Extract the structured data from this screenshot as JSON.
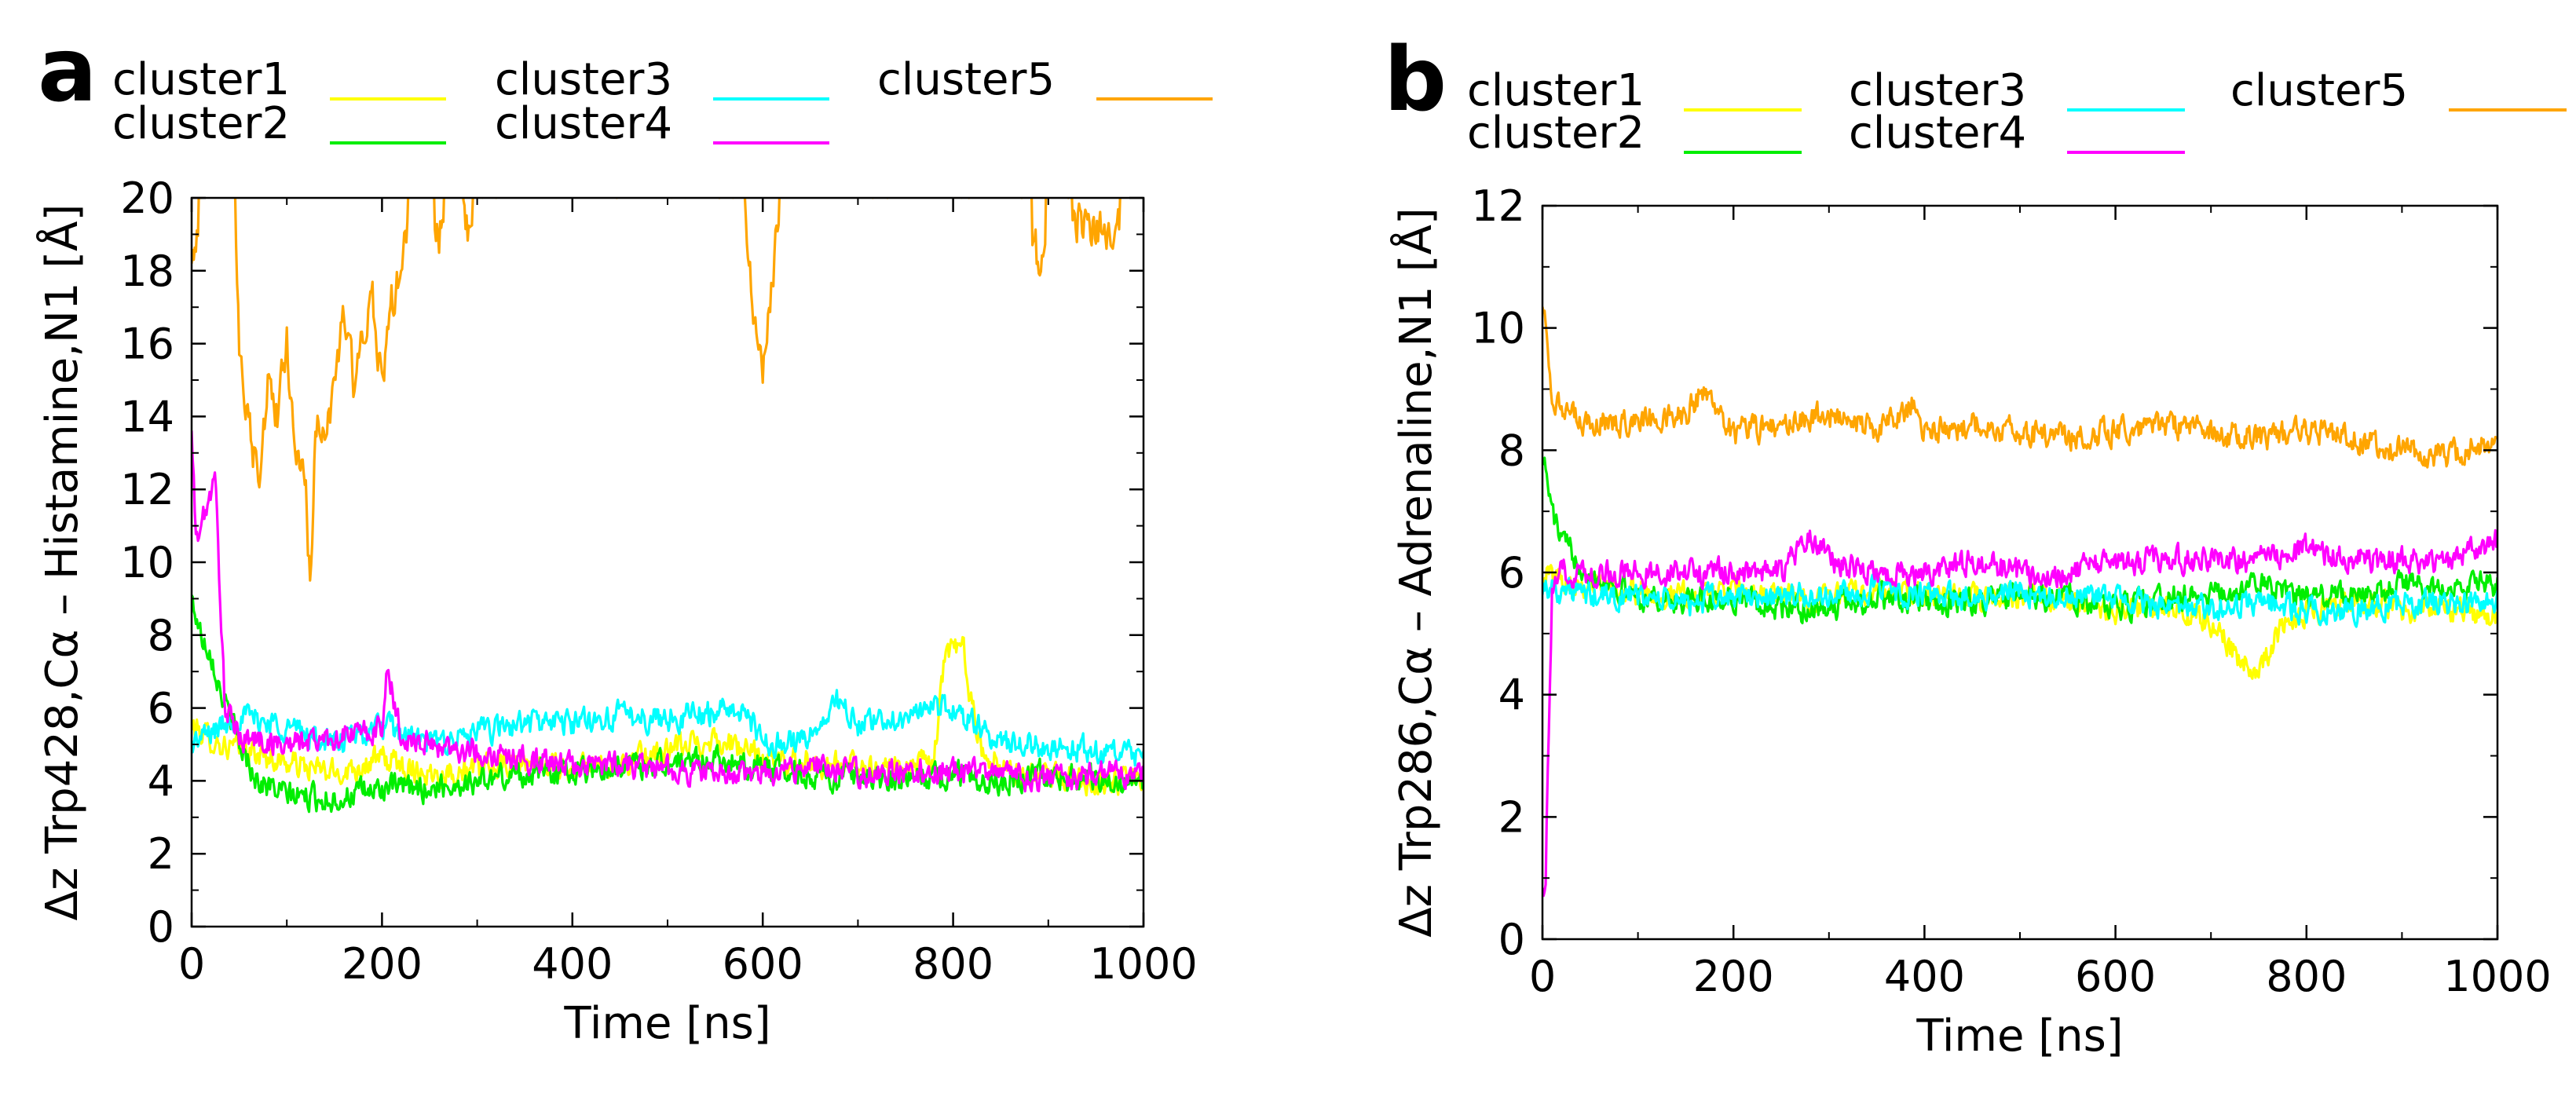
{
  "chart_data": [
    {
      "type": "line",
      "panel": "a",
      "xlabel": "Time [ns]",
      "ylabel": "Δz Trp428,Cα – Histamine,N1 [Å]",
      "xlim": [
        0,
        1000
      ],
      "ylim": [
        0,
        20
      ],
      "xticks": [
        0,
        200,
        400,
        600,
        800,
        1000
      ],
      "yticks": [
        0,
        2,
        4,
        6,
        8,
        10,
        12,
        14,
        16,
        18,
        20
      ],
      "legend_position": "top",
      "series": [
        {
          "name": "cluster1",
          "color": "#ffff00",
          "points": [
            [
              0,
              5.5
            ],
            [
              30,
              5
            ],
            [
              60,
              4.8
            ],
            [
              100,
              4.5
            ],
            [
              150,
              4.2
            ],
            [
              200,
              4.6
            ],
            [
              250,
              4.2
            ],
            [
              300,
              4.3
            ],
            [
              350,
              4.5
            ],
            [
              400,
              4.3
            ],
            [
              450,
              4.5
            ],
            [
              500,
              4.8
            ],
            [
              550,
              5.2
            ],
            [
              600,
              4.6
            ],
            [
              650,
              4.5
            ],
            [
              700,
              4.4
            ],
            [
              750,
              4.4
            ],
            [
              780,
              4.5
            ],
            [
              790,
              7.2
            ],
            [
              800,
              7.6
            ],
            [
              810,
              7.8
            ],
            [
              820,
              6.0
            ],
            [
              830,
              4.8
            ],
            [
              870,
              4.2
            ],
            [
              900,
              4.1
            ],
            [
              950,
              4.0
            ],
            [
              1000,
              4.0
            ]
          ]
        },
        {
          "name": "cluster2",
          "color": "#00ee00",
          "points": [
            [
              0,
              9.0
            ],
            [
              10,
              8.0
            ],
            [
              20,
              7.6
            ],
            [
              30,
              6.5
            ],
            [
              50,
              5.0
            ],
            [
              70,
              4.0
            ],
            [
              100,
              3.6
            ],
            [
              150,
              3.5
            ],
            [
              200,
              3.8
            ],
            [
              250,
              3.8
            ],
            [
              300,
              4.0
            ],
            [
              350,
              4.2
            ],
            [
              400,
              4.3
            ],
            [
              450,
              4.4
            ],
            [
              500,
              4.5
            ],
            [
              550,
              4.6
            ],
            [
              600,
              4.4
            ],
            [
              650,
              4.2
            ],
            [
              700,
              4.0
            ],
            [
              750,
              4.0
            ],
            [
              800,
              4.2
            ],
            [
              850,
              4.0
            ],
            [
              900,
              4.2
            ],
            [
              950,
              4.0
            ],
            [
              1000,
              3.9
            ]
          ]
        },
        {
          "name": "cluster3",
          "color": "#00ffff",
          "points": [
            [
              0,
              5.0
            ],
            [
              50,
              5.8
            ],
            [
              100,
              5.5
            ],
            [
              150,
              5.0
            ],
            [
              200,
              5.5
            ],
            [
              250,
              5.0
            ],
            [
              300,
              5.3
            ],
            [
              350,
              5.6
            ],
            [
              400,
              5.6
            ],
            [
              450,
              5.8
            ],
            [
              500,
              5.7
            ],
            [
              550,
              5.9
            ],
            [
              580,
              6.0
            ],
            [
              600,
              5.0
            ],
            [
              650,
              5.2
            ],
            [
              680,
              6.2
            ],
            [
              700,
              5.5
            ],
            [
              750,
              5.8
            ],
            [
              800,
              6.0
            ],
            [
              850,
              5.0
            ],
            [
              900,
              5.0
            ],
            [
              950,
              4.8
            ],
            [
              1000,
              4.6
            ]
          ]
        },
        {
          "name": "cluster4",
          "color": "#ff00ff",
          "points": [
            [
              0,
              13.5
            ],
            [
              5,
              10.5
            ],
            [
              15,
              11.5
            ],
            [
              25,
              12.2
            ],
            [
              35,
              6.0
            ],
            [
              50,
              5.2
            ],
            [
              100,
              5.0
            ],
            [
              150,
              5.2
            ],
            [
              200,
              5.4
            ],
            [
              205,
              7.2
            ],
            [
              220,
              5.2
            ],
            [
              250,
              5.0
            ],
            [
              300,
              4.8
            ],
            [
              350,
              4.6
            ],
            [
              400,
              4.4
            ],
            [
              450,
              4.5
            ],
            [
              500,
              4.3
            ],
            [
              550,
              4.2
            ],
            [
              600,
              4.2
            ],
            [
              650,
              4.4
            ],
            [
              700,
              4.2
            ],
            [
              750,
              4.3
            ],
            [
              800,
              4.3
            ],
            [
              850,
              4.2
            ],
            [
              900,
              4.0
            ],
            [
              950,
              4.2
            ],
            [
              1000,
              4.2
            ]
          ]
        },
        {
          "name": "cluster5",
          "color": "#ffa500",
          "points": [
            [
              0,
              18
            ],
            [
              10,
              20
            ],
            [
              20,
              20
            ],
            [
              30,
              20
            ],
            [
              45,
              20
            ],
            [
              50,
              16
            ],
            [
              60,
              14
            ],
            [
              70,
              12
            ],
            [
              80,
              15
            ],
            [
              90,
              14
            ],
            [
              100,
              16
            ],
            [
              110,
              13
            ],
            [
              120,
              12
            ],
            [
              125,
              9
            ],
            [
              130,
              14
            ],
            [
              140,
              13
            ],
            [
              150,
              15
            ],
            [
              160,
              17
            ],
            [
              170,
              15
            ],
            [
              180,
              16
            ],
            [
              190,
              17
            ],
            [
              200,
              15
            ],
            [
              210,
              17
            ],
            [
              220,
              18
            ],
            [
              230,
              20
            ],
            [
              250,
              20
            ],
            [
              260,
              19
            ],
            [
              270,
              20
            ],
            [
              280,
              20
            ],
            [
              290,
              19
            ],
            [
              300,
              20
            ],
            [
              350,
              20
            ],
            [
              400,
              20
            ],
            [
              450,
              20
            ],
            [
              500,
              20
            ],
            [
              550,
              20
            ],
            [
              580,
              20
            ],
            [
              590,
              17
            ],
            [
              600,
              15
            ],
            [
              610,
              18
            ],
            [
              620,
              20
            ],
            [
              650,
              20
            ],
            [
              700,
              20
            ],
            [
              750,
              20
            ],
            [
              800,
              20
            ],
            [
              850,
              20
            ],
            [
              880,
              20
            ],
            [
              890,
              18
            ],
            [
              900,
              20
            ],
            [
              950,
              19
            ],
            [
              1000,
              20
            ]
          ]
        }
      ]
    },
    {
      "type": "line",
      "panel": "b",
      "xlabel": "Time [ns]",
      "ylabel": "Δz Trp286,Cα – Adrenaline,N1 [Å]",
      "xlim": [
        0,
        1000
      ],
      "ylim": [
        0,
        12
      ],
      "xticks": [
        0,
        200,
        400,
        600,
        800,
        1000
      ],
      "yticks": [
        0,
        2,
        4,
        6,
        8,
        10,
        12
      ],
      "legend_position": "top",
      "series": [
        {
          "name": "cluster1",
          "color": "#ffff00",
          "points": [
            [
              0,
              6.0
            ],
            [
              50,
              5.8
            ],
            [
              100,
              5.7
            ],
            [
              150,
              5.6
            ],
            [
              200,
              5.7
            ],
            [
              250,
              5.6
            ],
            [
              300,
              5.6
            ],
            [
              350,
              5.7
            ],
            [
              400,
              5.6
            ],
            [
              450,
              5.6
            ],
            [
              500,
              5.6
            ],
            [
              550,
              5.5
            ],
            [
              600,
              5.4
            ],
            [
              650,
              5.4
            ],
            [
              700,
              5.2
            ],
            [
              730,
              4.6
            ],
            [
              750,
              4.4
            ],
            [
              770,
              5.0
            ],
            [
              800,
              5.4
            ],
            [
              850,
              5.5
            ],
            [
              900,
              5.4
            ],
            [
              950,
              5.4
            ],
            [
              1000,
              5.3
            ]
          ]
        },
        {
          "name": "cluster2",
          "color": "#00ee00",
          "points": [
            [
              0,
              8.0
            ],
            [
              10,
              7.0
            ],
            [
              20,
              6.5
            ],
            [
              50,
              6.0
            ],
            [
              100,
              5.6
            ],
            [
              150,
              5.5
            ],
            [
              200,
              5.6
            ],
            [
              250,
              5.4
            ],
            [
              300,
              5.4
            ],
            [
              350,
              5.6
            ],
            [
              400,
              5.5
            ],
            [
              450,
              5.5
            ],
            [
              500,
              5.6
            ],
            [
              550,
              5.6
            ],
            [
              600,
              5.4
            ],
            [
              650,
              5.6
            ],
            [
              700,
              5.6
            ],
            [
              750,
              5.8
            ],
            [
              800,
              5.6
            ],
            [
              850,
              5.6
            ],
            [
              900,
              5.8
            ],
            [
              950,
              5.8
            ],
            [
              1000,
              5.8
            ]
          ]
        },
        {
          "name": "cluster3",
          "color": "#00ffff",
          "points": [
            [
              0,
              5.8
            ],
            [
              50,
              5.6
            ],
            [
              100,
              5.6
            ],
            [
              150,
              5.5
            ],
            [
              200,
              5.6
            ],
            [
              250,
              5.6
            ],
            [
              300,
              5.6
            ],
            [
              350,
              5.7
            ],
            [
              400,
              5.6
            ],
            [
              450,
              5.6
            ],
            [
              500,
              5.7
            ],
            [
              550,
              5.6
            ],
            [
              600,
              5.6
            ],
            [
              650,
              5.4
            ],
            [
              700,
              5.4
            ],
            [
              750,
              5.5
            ],
            [
              800,
              5.4
            ],
            [
              850,
              5.4
            ],
            [
              900,
              5.5
            ],
            [
              950,
              5.5
            ],
            [
              1000,
              5.6
            ]
          ]
        },
        {
          "name": "cluster4",
          "color": "#ff00ff",
          "points": [
            [
              0,
              1.0
            ],
            [
              3,
              0.8
            ],
            [
              6,
              3.0
            ],
            [
              10,
              5.6
            ],
            [
              20,
              6.0
            ],
            [
              50,
              6.0
            ],
            [
              100,
              6.0
            ],
            [
              150,
              6.0
            ],
            [
              200,
              6.0
            ],
            [
              250,
              6.0
            ],
            [
              280,
              6.6
            ],
            [
              300,
              6.2
            ],
            [
              350,
              6.0
            ],
            [
              400,
              6.0
            ],
            [
              450,
              6.2
            ],
            [
              500,
              6.0
            ],
            [
              550,
              6.0
            ],
            [
              600,
              6.2
            ],
            [
              650,
              6.2
            ],
            [
              700,
              6.2
            ],
            [
              750,
              6.2
            ],
            [
              800,
              6.4
            ],
            [
              850,
              6.2
            ],
            [
              900,
              6.2
            ],
            [
              950,
              6.2
            ],
            [
              1000,
              6.5
            ]
          ]
        },
        {
          "name": "cluster5",
          "color": "#ffa500",
          "points": [
            [
              0,
              10.5
            ],
            [
              10,
              9.0
            ],
            [
              20,
              8.6
            ],
            [
              50,
              8.4
            ],
            [
              100,
              8.5
            ],
            [
              150,
              8.6
            ],
            [
              170,
              9.0
            ],
            [
              200,
              8.3
            ],
            [
              250,
              8.4
            ],
            [
              300,
              8.6
            ],
            [
              350,
              8.3
            ],
            [
              390,
              8.8
            ],
            [
              400,
              8.3
            ],
            [
              450,
              8.4
            ],
            [
              500,
              8.3
            ],
            [
              550,
              8.2
            ],
            [
              600,
              8.3
            ],
            [
              650,
              8.4
            ],
            [
              700,
              8.3
            ],
            [
              750,
              8.2
            ],
            [
              800,
              8.3
            ],
            [
              850,
              8.2
            ],
            [
              900,
              8.0
            ],
            [
              950,
              7.9
            ],
            [
              1000,
              8.2
            ]
          ]
        }
      ]
    }
  ]
}
